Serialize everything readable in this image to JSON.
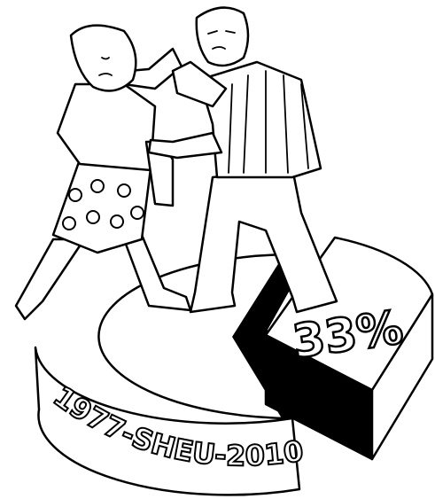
{
  "illustration": {
    "slice_label": "33%",
    "rim_text": "1977-SHEU-2010"
  }
}
